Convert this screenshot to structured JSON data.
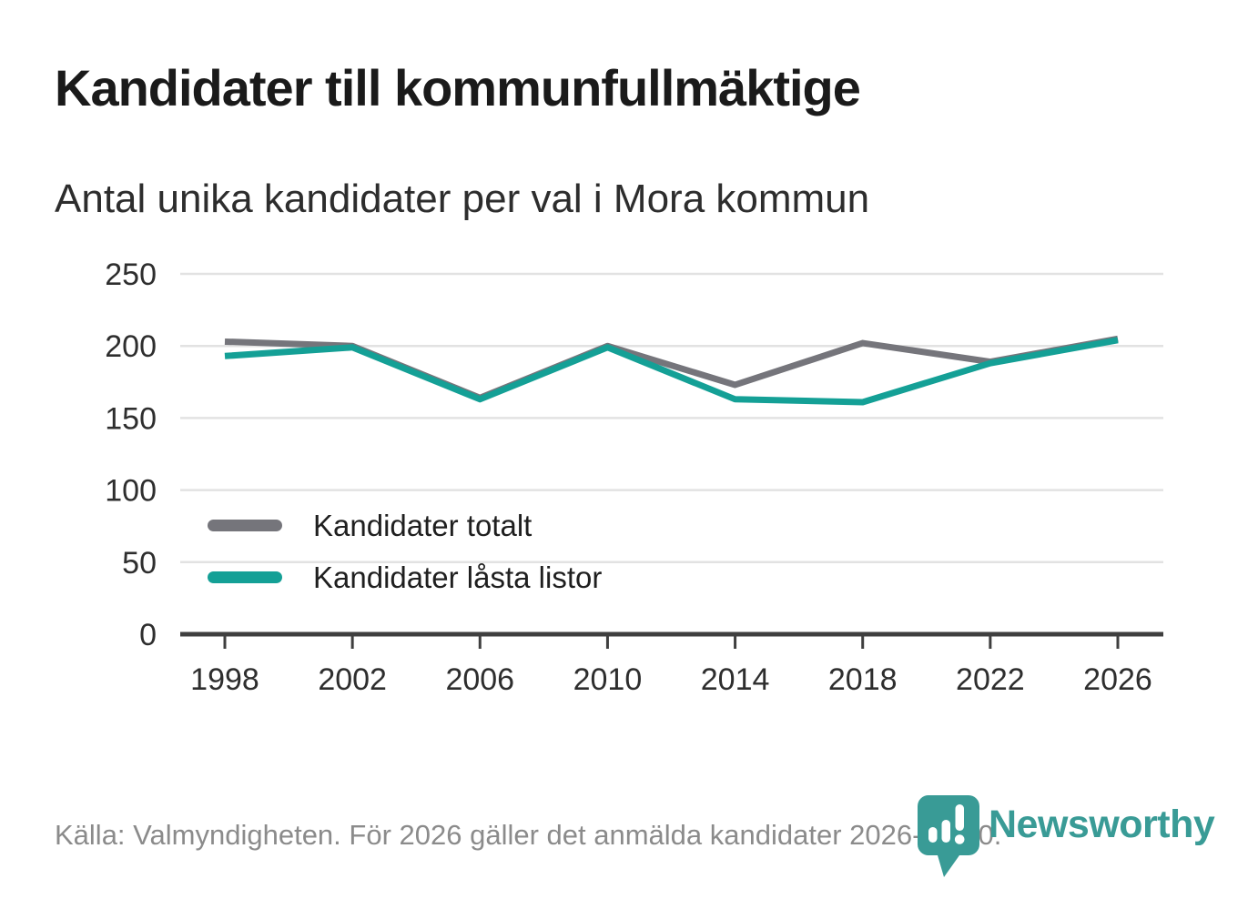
{
  "header": {
    "title": "Kandidater till kommunfullmäktige",
    "subtitle": "Antal unika kandidater per val i Mora kommun"
  },
  "chart_data": {
    "type": "line",
    "x": [
      1998,
      2002,
      2006,
      2010,
      2014,
      2018,
      2022,
      2026
    ],
    "series": [
      {
        "name": "Kandidater totalt",
        "color": "#75757B",
        "values": [
          203,
          200,
          164,
          200,
          173,
          202,
          189,
          205
        ]
      },
      {
        "name": "Kandidater låsta listor",
        "color": "#14A096",
        "values": [
          193,
          199,
          163,
          199,
          163,
          161,
          188,
          204
        ]
      }
    ],
    "title": "Kandidater till kommunfullmäktige",
    "subtitle": "Antal unika kandidater per val i Mora kommun",
    "xlabel": "",
    "ylabel": "",
    "ylim": [
      0,
      250
    ],
    "yticks": [
      0,
      50,
      100,
      150,
      200,
      250
    ],
    "grid": "horizontal",
    "legend_position": "inside-middle-left",
    "gridline_color": "#E2E2E2",
    "axis_color": "#3F3F3F",
    "tick_label_color": "#2E2E2E"
  },
  "footer": {
    "source_text": "Källa: Valmyndigheten. För 2026 gäller det anmälda kandidater 2026-04-10."
  },
  "logo": {
    "wordmark": "Newsworthy",
    "color": "#399B96",
    "icon": "newsworthy-pin-barchart-icon"
  }
}
